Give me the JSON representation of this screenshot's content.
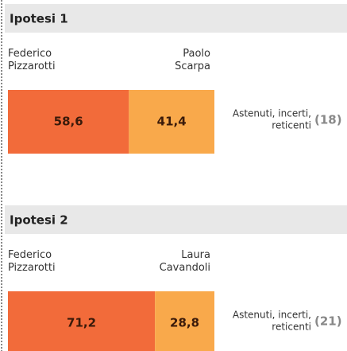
{
  "chart_data": [
    {
      "type": "stacked-bar",
      "title": "Ipotesi 1",
      "xlim": [
        0,
        100
      ],
      "series": [
        {
          "name": "Federico Pizzarotti",
          "color": "#f26b3a",
          "values": [
            58.6
          ],
          "value_labels": [
            "58,6"
          ]
        },
        {
          "name": "Paolo Scarpa",
          "color": "#f9a94b",
          "values": [
            41.4
          ],
          "value_labels": [
            "41,4"
          ]
        }
      ],
      "others": {
        "label": [
          "Astenuti, incerti,",
          "reticenti"
        ],
        "value": 18,
        "value_label": "(18)"
      }
    },
    {
      "type": "stacked-bar",
      "title": "Ipotesi 2",
      "xlim": [
        0,
        100
      ],
      "series": [
        {
          "name": "Federico Pizzarotti",
          "color": "#f26b3a",
          "values": [
            71.2
          ],
          "value_labels": [
            "71,2"
          ]
        },
        {
          "name": "Laura Cavandoli",
          "color": "#f9a94b",
          "values": [
            28.8
          ],
          "value_labels": [
            "28,8"
          ]
        }
      ],
      "others": {
        "label": [
          "Astenuti, incerti,",
          "reticenti"
        ],
        "value": 21,
        "value_label": "(21)"
      }
    }
  ]
}
